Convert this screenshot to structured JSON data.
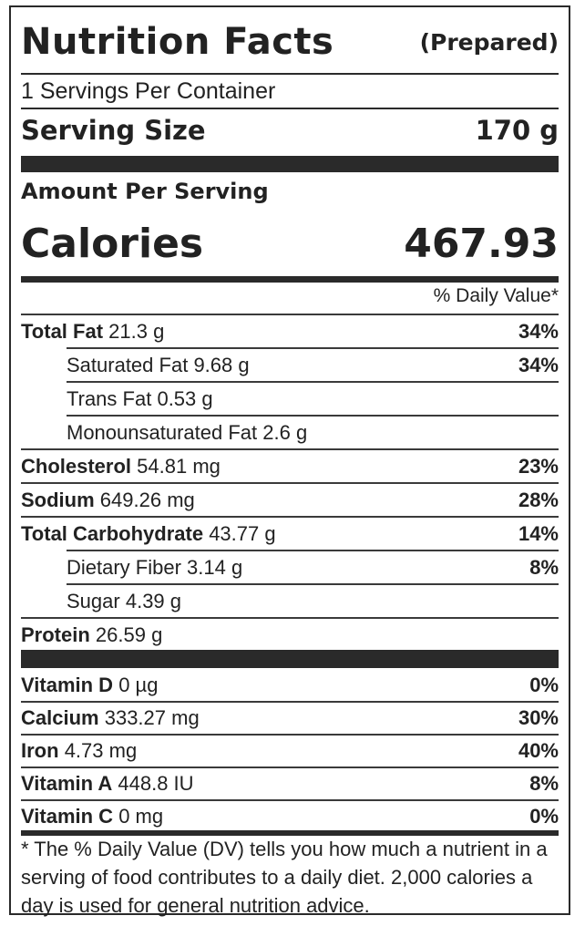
{
  "header": {
    "title": "Nutrition Facts",
    "subtitle": "(Prepared)"
  },
  "servings_per_container": "1 Servings Per Container",
  "serving_size": {
    "label": "Serving Size",
    "value": "170 g"
  },
  "amount_per_serving": "Amount Per Serving",
  "calories": {
    "label": "Calories",
    "value": "467.93"
  },
  "daily_value_header": "% Daily Value*",
  "nutrients": [
    {
      "name": "Total Fat",
      "amount": "21.3 g",
      "dv": "34%",
      "bold": true,
      "indent": false
    },
    {
      "name": "Saturated Fat",
      "amount": "9.68 g",
      "dv": "34%",
      "bold": false,
      "indent": true
    },
    {
      "name": "Trans Fat",
      "amount": "0.53 g",
      "dv": "",
      "bold": false,
      "indent": true
    },
    {
      "name": "Monounsaturated Fat",
      "amount": "2.6 g",
      "dv": "",
      "bold": false,
      "indent": true
    },
    {
      "name": "Cholesterol",
      "amount": "54.81 mg",
      "dv": "23%",
      "bold": true,
      "indent": false
    },
    {
      "name": "Sodium",
      "amount": "649.26 mg",
      "dv": "28%",
      "bold": true,
      "indent": false
    },
    {
      "name": "Total Carbohydrate",
      "amount": "43.77 g",
      "dv": "14%",
      "bold": true,
      "indent": false
    },
    {
      "name": "Dietary Fiber",
      "amount": "3.14 g",
      "dv": "8%",
      "bold": false,
      "indent": true
    },
    {
      "name": "Sugar",
      "amount": "4.39 g",
      "dv": "",
      "bold": false,
      "indent": true
    },
    {
      "name": "Protein",
      "amount": "26.59 g",
      "dv": "",
      "bold": true,
      "indent": false
    }
  ],
  "vitamins": [
    {
      "name": "Vitamin D",
      "amount": "0 µg",
      "dv": "0%"
    },
    {
      "name": "Calcium",
      "amount": "333.27 mg",
      "dv": "30%"
    },
    {
      "name": "Iron",
      "amount": "4.73 mg",
      "dv": "40%"
    },
    {
      "name": "Vitamin A",
      "amount": "448.8 IU",
      "dv": "8%"
    },
    {
      "name": "Vitamin C",
      "amount": "0 mg",
      "dv": "0%"
    }
  ],
  "footnote": "* The % Daily Value (DV) tells you how much a nutrient in a serving of food contributes to a daily diet. 2,000 calories a day is used for general nutrition advice.",
  "colors": {
    "text": "#222222",
    "rule": "#2a2a2a",
    "background": "#ffffff"
  }
}
